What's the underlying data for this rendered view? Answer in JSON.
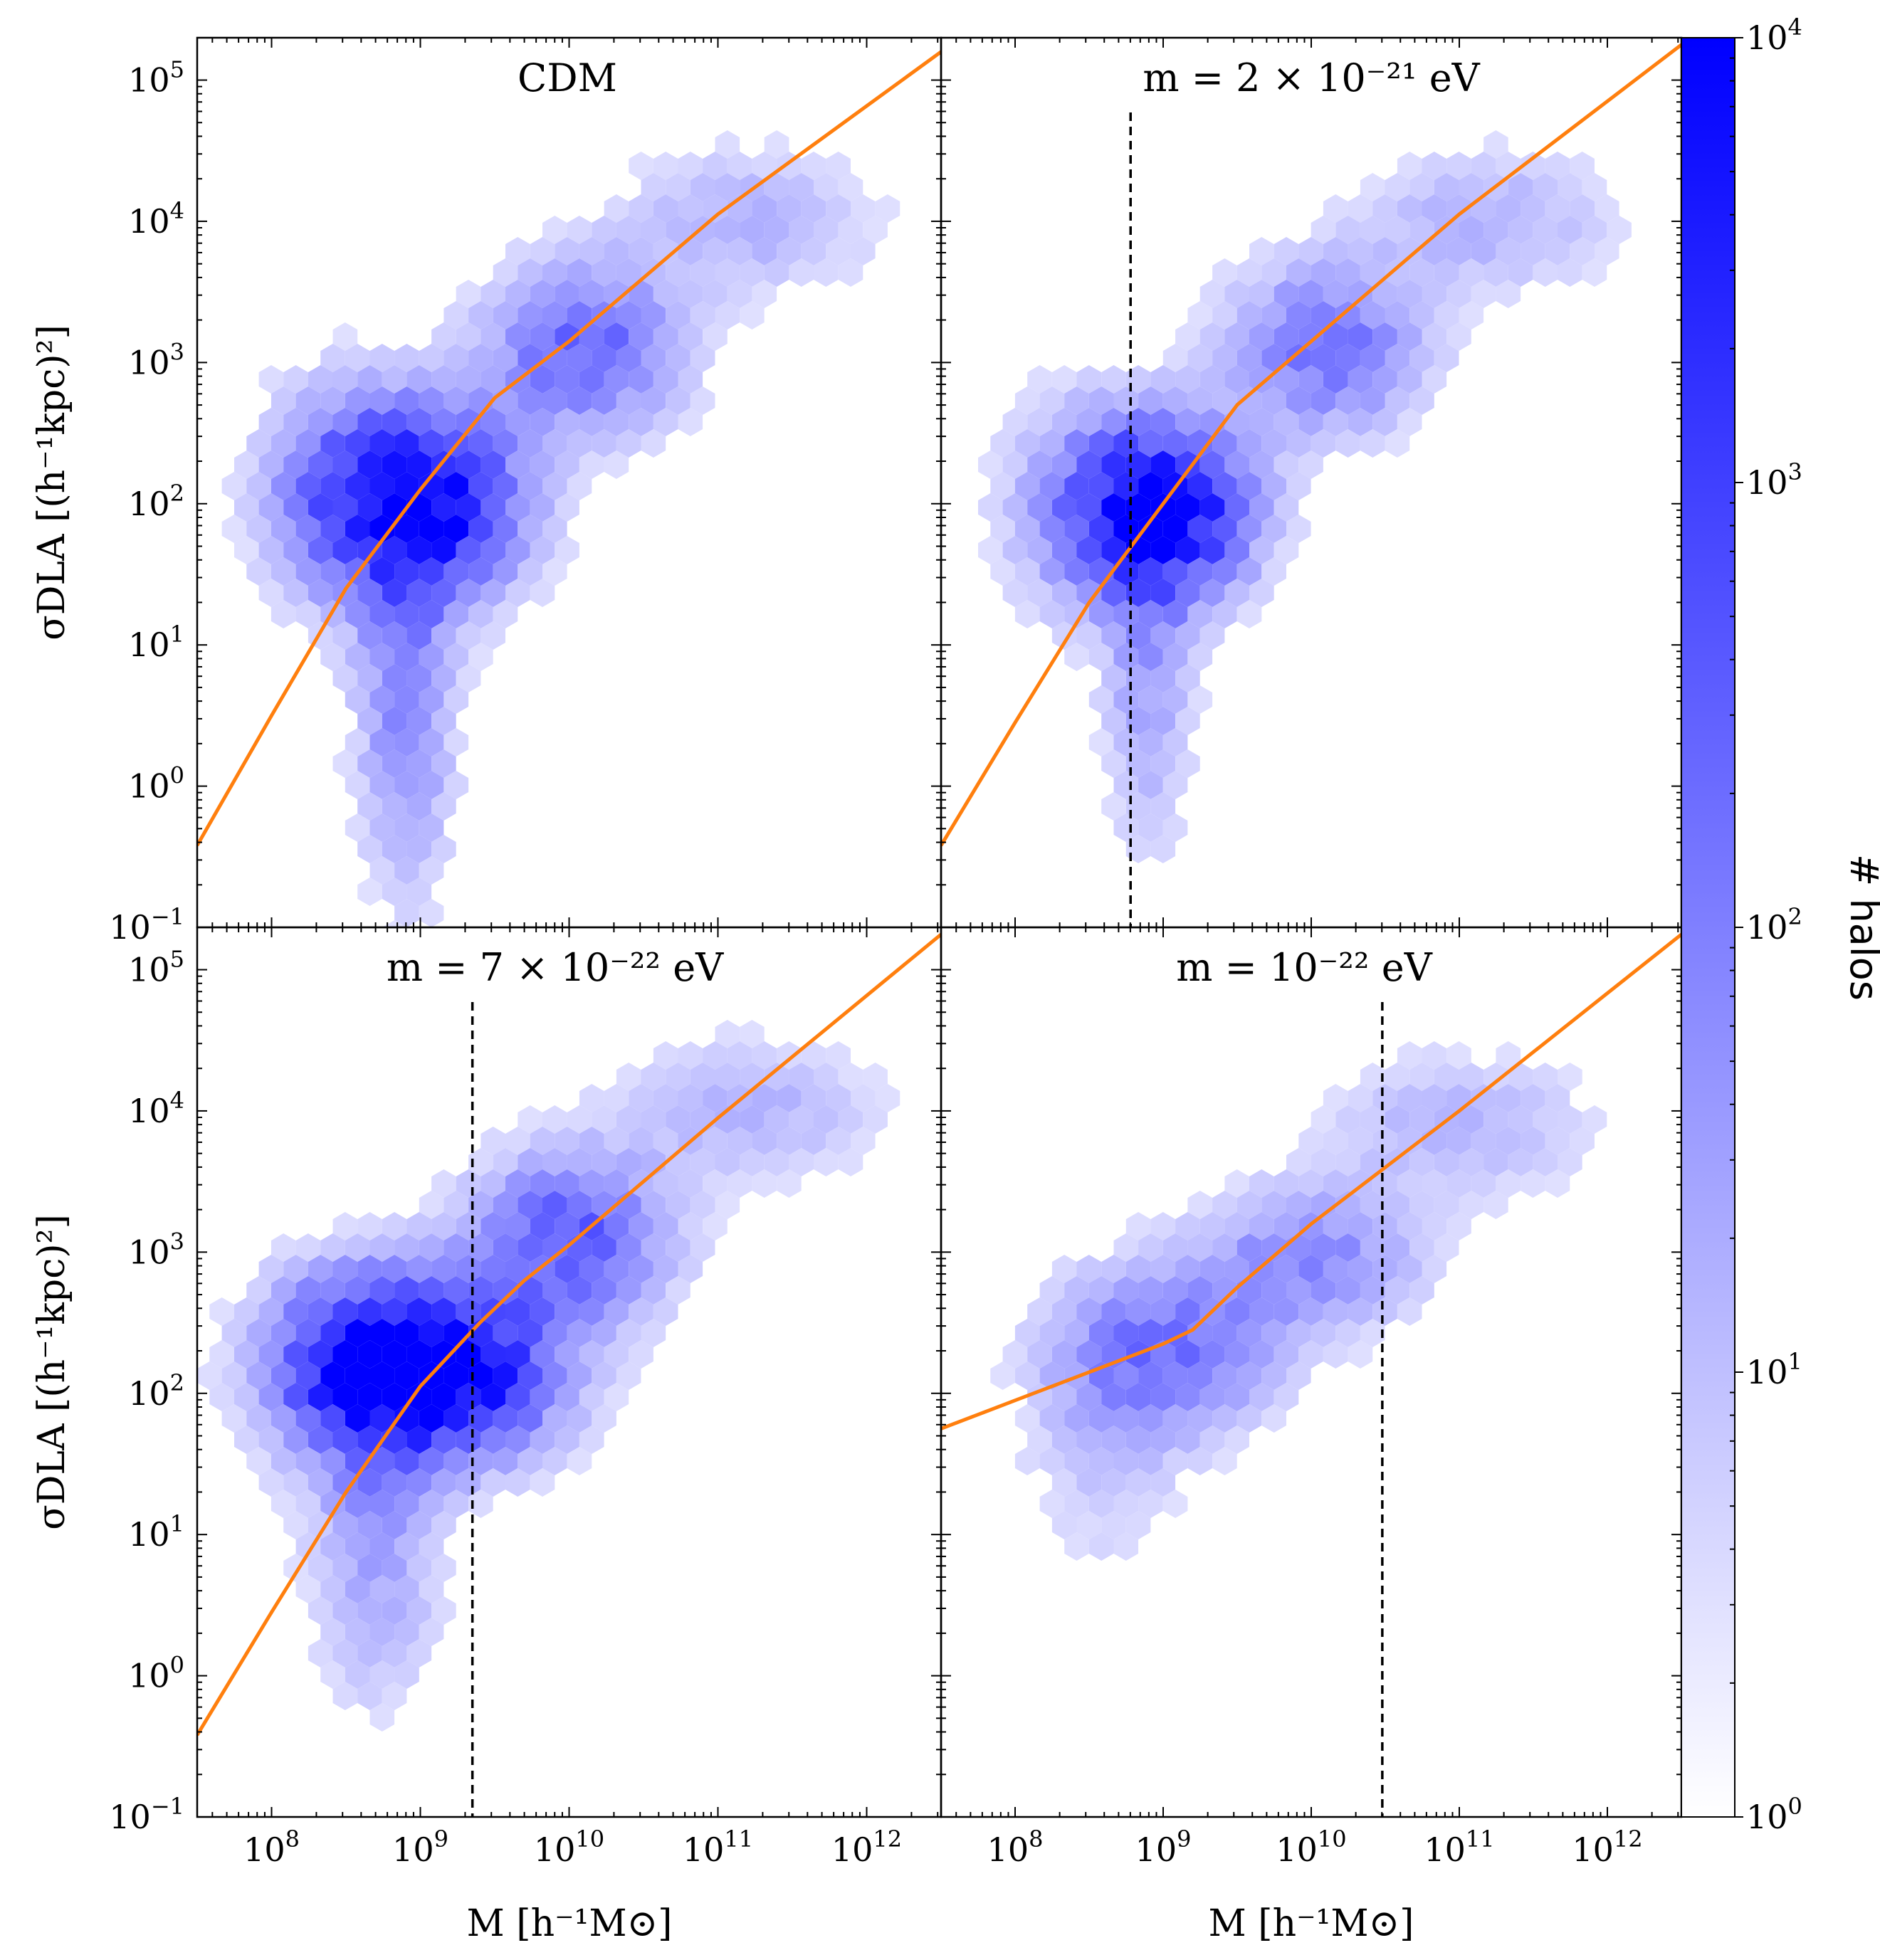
{
  "chart_data": {
    "type": "hexbin",
    "x_scale": "log",
    "y_scale": "log",
    "xlim_log10": [
      7.5,
      12.5
    ],
    "ylim_log10": [
      -1,
      5.3
    ],
    "x_tick_exponents": [
      8,
      9,
      10,
      11,
      12
    ],
    "y_tick_exponents": [
      -1,
      0,
      1,
      2,
      3,
      4,
      5
    ],
    "x_tick_base": "10",
    "y_tick_base": "10",
    "xlabel": "M  [h⁻¹M⊙]",
    "ylabel": "σDLA [(h⁻¹kpc)²]",
    "colors": {
      "fit_line": "#ff7f0e",
      "hex_max": "#0000ff",
      "hex_min": "#ffffff",
      "cutoff_line": "#000000"
    },
    "panels": [
      {
        "title": "CDM",
        "cutoff_log10M": null,
        "fit_line": [
          [
            7.5,
            -0.42
          ],
          [
            8.0,
            0.5
          ],
          [
            8.5,
            1.4
          ],
          [
            9.0,
            2.1
          ],
          [
            9.5,
            2.75
          ],
          [
            10.0,
            3.15
          ],
          [
            11.0,
            4.05
          ],
          [
            12.5,
            5.2
          ]
        ],
        "clusters": [
          {
            "x": 9.0,
            "y": 2.0,
            "sx": 0.45,
            "sy": 0.45,
            "w": 1.0
          },
          {
            "x": 8.9,
            "y": 0.6,
            "sx": 0.22,
            "sy": 0.9,
            "w": 0.35
          },
          {
            "x": 10.1,
            "y": 3.1,
            "sx": 0.45,
            "sy": 0.4,
            "w": 0.5
          },
          {
            "x": 11.2,
            "y": 4.0,
            "sx": 0.6,
            "sy": 0.35,
            "w": 0.2
          },
          {
            "x": 8.4,
            "y": 2.1,
            "sx": 0.35,
            "sy": 0.55,
            "w": 0.25
          }
        ]
      },
      {
        "title": "m = 2 × 10⁻²¹ eV",
        "cutoff_log10M": 8.78,
        "fit_line": [
          [
            7.5,
            -0.42
          ],
          [
            8.0,
            0.45
          ],
          [
            8.5,
            1.3
          ],
          [
            9.0,
            2.0
          ],
          [
            9.5,
            2.7
          ],
          [
            10.0,
            3.15
          ],
          [
            11.0,
            4.05
          ],
          [
            12.5,
            5.25
          ]
        ],
        "clusters": [
          {
            "x": 9.0,
            "y": 1.95,
            "sx": 0.4,
            "sy": 0.42,
            "w": 1.0
          },
          {
            "x": 8.9,
            "y": 0.7,
            "sx": 0.2,
            "sy": 0.8,
            "w": 0.25
          },
          {
            "x": 10.1,
            "y": 3.1,
            "sx": 0.45,
            "sy": 0.4,
            "w": 0.45
          },
          {
            "x": 11.2,
            "y": 4.0,
            "sx": 0.6,
            "sy": 0.35,
            "w": 0.2
          },
          {
            "x": 8.4,
            "y": 2.0,
            "sx": 0.35,
            "sy": 0.55,
            "w": 0.22
          }
        ]
      },
      {
        "title": "m = 7 × 10⁻²² eV",
        "cutoff_log10M": 9.35,
        "fit_line": [
          [
            7.5,
            -0.42
          ],
          [
            8.0,
            0.45
          ],
          [
            8.5,
            1.3
          ],
          [
            9.0,
            2.05
          ],
          [
            9.4,
            2.5
          ],
          [
            9.7,
            2.8
          ],
          [
            10.0,
            3.05
          ],
          [
            11.0,
            3.95
          ],
          [
            12.5,
            5.25
          ]
        ],
        "clusters": [
          {
            "x": 9.2,
            "y": 2.15,
            "sx": 0.5,
            "sy": 0.4,
            "w": 0.9
          },
          {
            "x": 8.6,
            "y": 2.2,
            "sx": 0.45,
            "sy": 0.45,
            "w": 0.7
          },
          {
            "x": 8.7,
            "y": 0.9,
            "sx": 0.3,
            "sy": 0.75,
            "w": 0.25
          },
          {
            "x": 10.0,
            "y": 3.1,
            "sx": 0.45,
            "sy": 0.4,
            "w": 0.55
          },
          {
            "x": 11.2,
            "y": 4.0,
            "sx": 0.6,
            "sy": 0.35,
            "w": 0.2
          }
        ]
      },
      {
        "title": "m = 10⁻²² eV",
        "cutoff_log10M": 10.48,
        "fit_line": [
          [
            7.5,
            1.75
          ],
          [
            8.0,
            1.95
          ],
          [
            8.5,
            2.15
          ],
          [
            9.0,
            2.35
          ],
          [
            9.2,
            2.45
          ],
          [
            9.5,
            2.75
          ],
          [
            10.0,
            3.2
          ],
          [
            10.5,
            3.6
          ],
          [
            11.0,
            4.0
          ],
          [
            12.5,
            5.25
          ]
        ],
        "clusters": [
          {
            "x": 9.0,
            "y": 2.3,
            "sx": 0.5,
            "sy": 0.4,
            "w": 0.45
          },
          {
            "x": 10.0,
            "y": 2.95,
            "sx": 0.5,
            "sy": 0.35,
            "w": 0.35
          },
          {
            "x": 11.0,
            "y": 3.9,
            "sx": 0.6,
            "sy": 0.35,
            "w": 0.2
          },
          {
            "x": 8.6,
            "y": 1.5,
            "sx": 0.4,
            "sy": 0.6,
            "w": 0.12
          }
        ]
      }
    ],
    "colorbar": {
      "label": "# halos",
      "tick_exponents": [
        0,
        1,
        2,
        3,
        4
      ],
      "tick_base": "10",
      "scale": "log",
      "range_log10": [
        0,
        4
      ]
    }
  }
}
